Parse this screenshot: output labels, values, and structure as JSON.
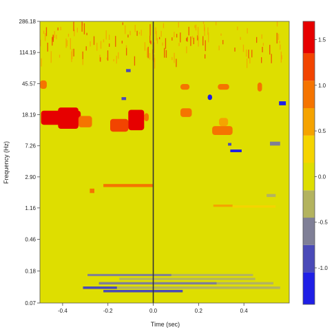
{
  "chart_data": {
    "type": "heatmap",
    "title": "",
    "xlabel": "Time (sec)",
    "ylabel": "Frequency (Hz)",
    "xlim": [
      -0.5,
      0.6
    ],
    "y_scale": "log",
    "ylim": [
      0.07,
      286.18
    ],
    "x_ticks": [
      -0.4,
      -0.2,
      0.0,
      0.2,
      0.4
    ],
    "x_tick_labels": [
      "-0.4",
      "-0.2",
      "0.0",
      "0.2",
      "0.4"
    ],
    "y_ticks": [
      0.07,
      0.18,
      0.46,
      1.16,
      2.9,
      7.26,
      18.19,
      45.57,
      114.19,
      286.18
    ],
    "y_tick_labels": [
      "0.07",
      "0.18",
      "0.46",
      "1.16",
      "2.90",
      "7.26",
      "18.19",
      "45.57",
      "114.19",
      "286.18"
    ],
    "background_value": 0.0,
    "vertical_line_x": 0.0,
    "colorbar": {
      "min": -1.4,
      "max": 1.7,
      "ticks": [
        -1.0,
        -0.5,
        0.0,
        0.5,
        1.0,
        1.5
      ],
      "tick_labels": [
        "-1.0",
        "-0.5",
        "0.0",
        "0.5",
        "1.0",
        "1.5"
      ],
      "bins": [
        {
          "from": -1.4,
          "to": -1.05,
          "color": "#1f1fe6"
        },
        {
          "from": -1.05,
          "to": -0.75,
          "color": "#4a4ab8"
        },
        {
          "from": -0.75,
          "to": -0.45,
          "color": "#7f7f96"
        },
        {
          "from": -0.45,
          "to": -0.15,
          "color": "#b3b35f"
        },
        {
          "from": -0.15,
          "to": 0.15,
          "color": "#dede00"
        },
        {
          "from": 0.15,
          "to": 0.45,
          "color": "#f5d400"
        },
        {
          "from": 0.45,
          "to": 0.75,
          "color": "#f5a300"
        },
        {
          "from": 0.75,
          "to": 1.05,
          "color": "#f57400"
        },
        {
          "from": 1.05,
          "to": 1.35,
          "color": "#f24400"
        },
        {
          "from": 1.35,
          "to": 1.7,
          "color": "#e60000"
        }
      ]
    },
    "regions": [
      {
        "x0": -0.495,
        "x1": -0.32,
        "f0": 13.5,
        "f1": 20.5,
        "value": 1.5
      },
      {
        "x0": -0.42,
        "x1": -0.33,
        "f0": 12.0,
        "f1": 22.5,
        "value": 1.6
      },
      {
        "x0": -0.33,
        "x1": -0.27,
        "f0": 12.5,
        "f1": 17.5,
        "value": 0.9
      },
      {
        "x0": -0.19,
        "x1": -0.11,
        "f0": 11.0,
        "f1": 16.0,
        "value": 1.2
      },
      {
        "x0": -0.11,
        "x1": -0.04,
        "f0": 11.5,
        "f1": 21.0,
        "value": 1.5
      },
      {
        "x0": -0.04,
        "x1": -0.02,
        "f0": 15.0,
        "f1": 19.0,
        "value": 1.0
      },
      {
        "x0": 0.12,
        "x1": 0.17,
        "f0": 17.0,
        "f1": 22.0,
        "value": 1.0
      },
      {
        "x0": 0.26,
        "x1": 0.35,
        "f0": 10.0,
        "f1": 13.0,
        "value": 0.9
      },
      {
        "x0": 0.29,
        "x1": 0.33,
        "f0": 13.0,
        "f1": 16.5,
        "value": 0.7
      },
      {
        "x0": 0.24,
        "x1": 0.26,
        "f0": 28.0,
        "f1": 33.0,
        "value": -1.3
      },
      {
        "x0": 0.285,
        "x1": 0.335,
        "f0": 38.0,
        "f1": 45.0,
        "value": 1.0
      },
      {
        "x0": 0.12,
        "x1": 0.16,
        "f0": 38.0,
        "f1": 45.0,
        "value": 1.0
      },
      {
        "x0": -0.5,
        "x1": -0.47,
        "f0": 39.0,
        "f1": 50.0,
        "value": 1.0
      },
      {
        "x0": 0.46,
        "x1": 0.48,
        "f0": 36.0,
        "f1": 47.0,
        "value": 1.0
      },
      {
        "x0": 0.34,
        "x1": 0.39,
        "f0": 6.0,
        "f1": 6.5,
        "value": -1.2
      },
      {
        "x0": 0.33,
        "x1": 0.345,
        "f0": 7.3,
        "f1": 7.9,
        "value": -0.8
      },
      {
        "x0": 0.515,
        "x1": 0.56,
        "f0": 7.3,
        "f1": 8.2,
        "value": -0.6
      },
      {
        "x0": 0.555,
        "x1": 0.585,
        "f0": 24.0,
        "f1": 27.0,
        "value": -1.2
      },
      {
        "x0": -0.12,
        "x1": -0.1,
        "f0": 64.0,
        "f1": 70.0,
        "value": -0.9
      },
      {
        "x0": -0.14,
        "x1": -0.12,
        "f0": 28.0,
        "f1": 30.5,
        "value": -0.8
      },
      {
        "x0": -0.22,
        "x1": 0.0,
        "f0": 2.15,
        "f1": 2.35,
        "value": 0.9
      },
      {
        "x0": -0.28,
        "x1": -0.26,
        "f0": 1.8,
        "f1": 2.05,
        "value": 1.0
      },
      {
        "x0": 0.265,
        "x1": 0.35,
        "f0": 1.2,
        "f1": 1.28,
        "value": 0.7
      },
      {
        "x0": 0.35,
        "x1": 0.54,
        "f0": 1.17,
        "f1": 1.25,
        "value": 0.3
      },
      {
        "x0": 0.5,
        "x1": 0.54,
        "f0": 1.6,
        "f1": 1.75,
        "value": -0.4
      },
      {
        "x0": -0.29,
        "x1": 0.08,
        "f0": 0.155,
        "f1": 0.165,
        "value": -0.55
      },
      {
        "x0": 0.08,
        "x1": 0.44,
        "f0": 0.155,
        "f1": 0.165,
        "value": -0.4
      },
      {
        "x0": -0.15,
        "x1": 0.45,
        "f0": 0.138,
        "f1": 0.147,
        "value": -0.35
      },
      {
        "x0": -0.24,
        "x1": 0.28,
        "f0": 0.121,
        "f1": 0.13,
        "value": -0.6
      },
      {
        "x0": 0.28,
        "x1": 0.53,
        "f0": 0.121,
        "f1": 0.13,
        "value": -0.35
      },
      {
        "x0": -0.31,
        "x1": -0.16,
        "f0": 0.106,
        "f1": 0.114,
        "value": -0.8
      },
      {
        "x0": -0.16,
        "x1": 0.56,
        "f0": 0.106,
        "f1": 0.114,
        "value": -0.4
      },
      {
        "x0": -0.22,
        "x1": 0.13,
        "f0": 0.096,
        "f1": 0.103,
        "value": -1.0
      }
    ]
  }
}
